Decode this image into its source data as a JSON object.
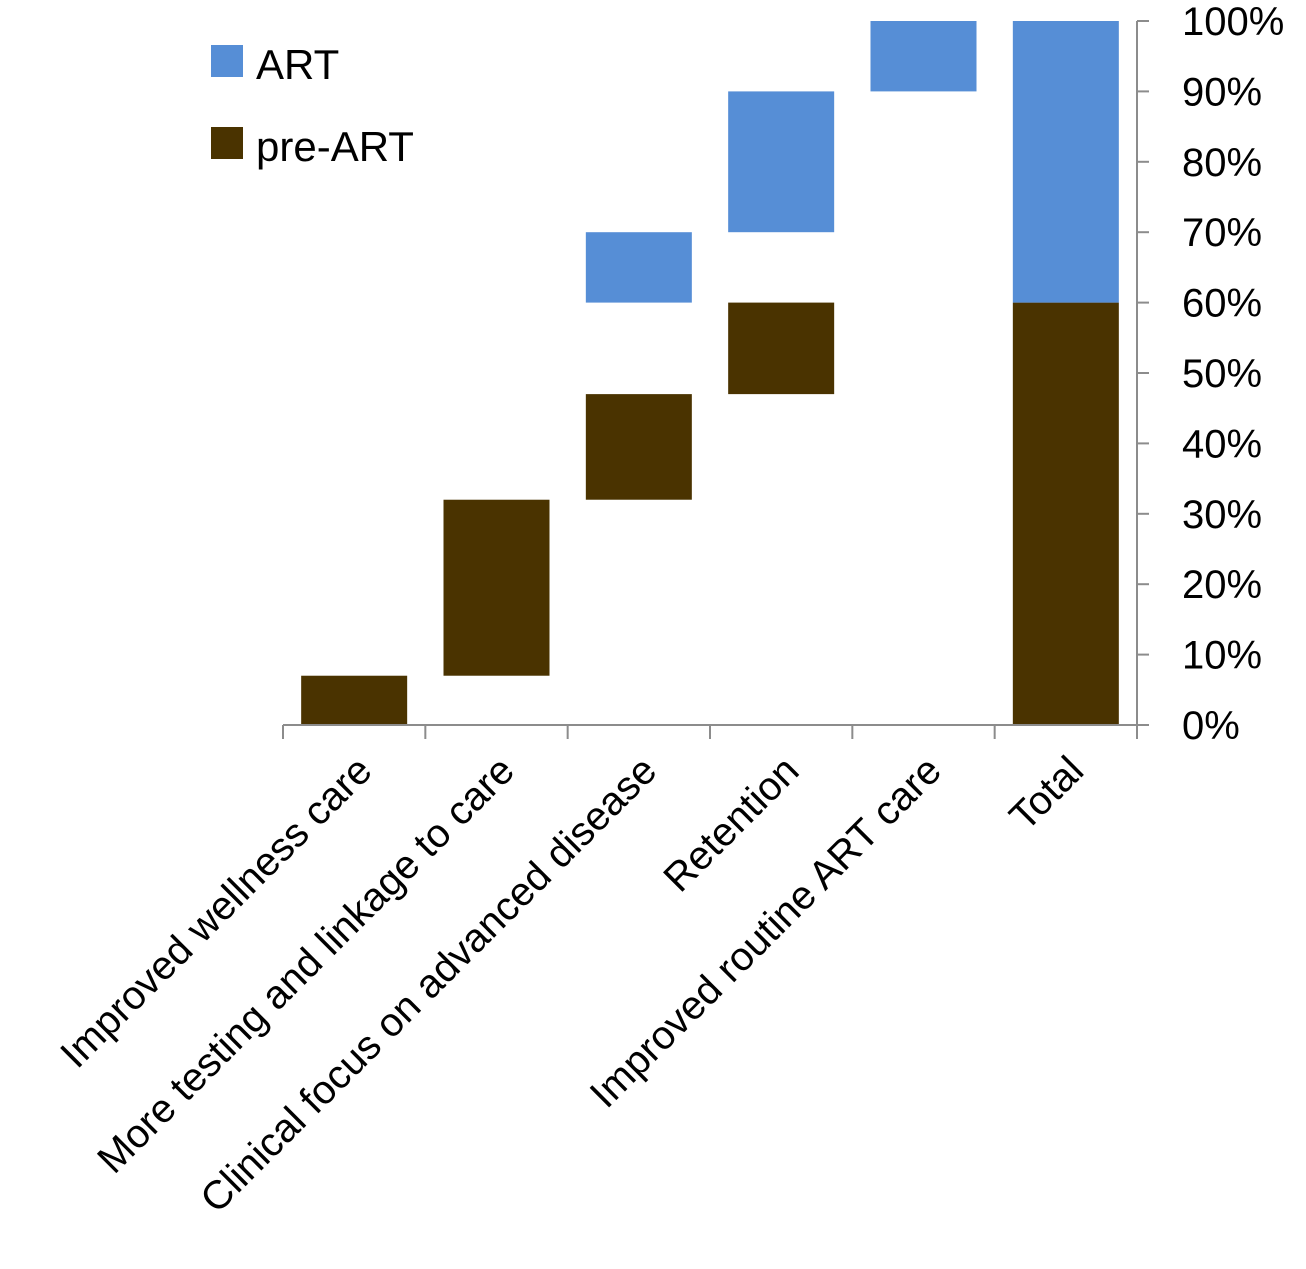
{
  "chart_data": {
    "type": "bar",
    "subtype": "waterfall",
    "categories": [
      "Improved wellness care",
      "More testing and linkage to care",
      "Clinical focus on advanced disease",
      "Retention",
      "Improved routine ART care",
      "Total"
    ],
    "series": [
      {
        "name": "pre-ART",
        "color": "#4a3300",
        "ranges": [
          [
            0,
            7
          ],
          [
            7,
            32
          ],
          [
            32,
            47
          ],
          [
            47,
            60
          ],
          null,
          [
            0,
            60
          ]
        ]
      },
      {
        "name": "ART",
        "color": "#568ed6",
        "ranges": [
          null,
          null,
          [
            60,
            70
          ],
          [
            70,
            90
          ],
          [
            90,
            100
          ],
          [
            60,
            100
          ]
        ]
      }
    ],
    "ylim": [
      0,
      100
    ],
    "yticks": [
      "0%",
      "10%",
      "20%",
      "30%",
      "40%",
      "50%",
      "60%",
      "70%",
      "80%",
      "90%",
      "100%"
    ],
    "y_axis_side": "right",
    "legend": {
      "placement": "top-left",
      "entries": [
        "ART",
        "pre-ART"
      ]
    },
    "grid": false
  }
}
